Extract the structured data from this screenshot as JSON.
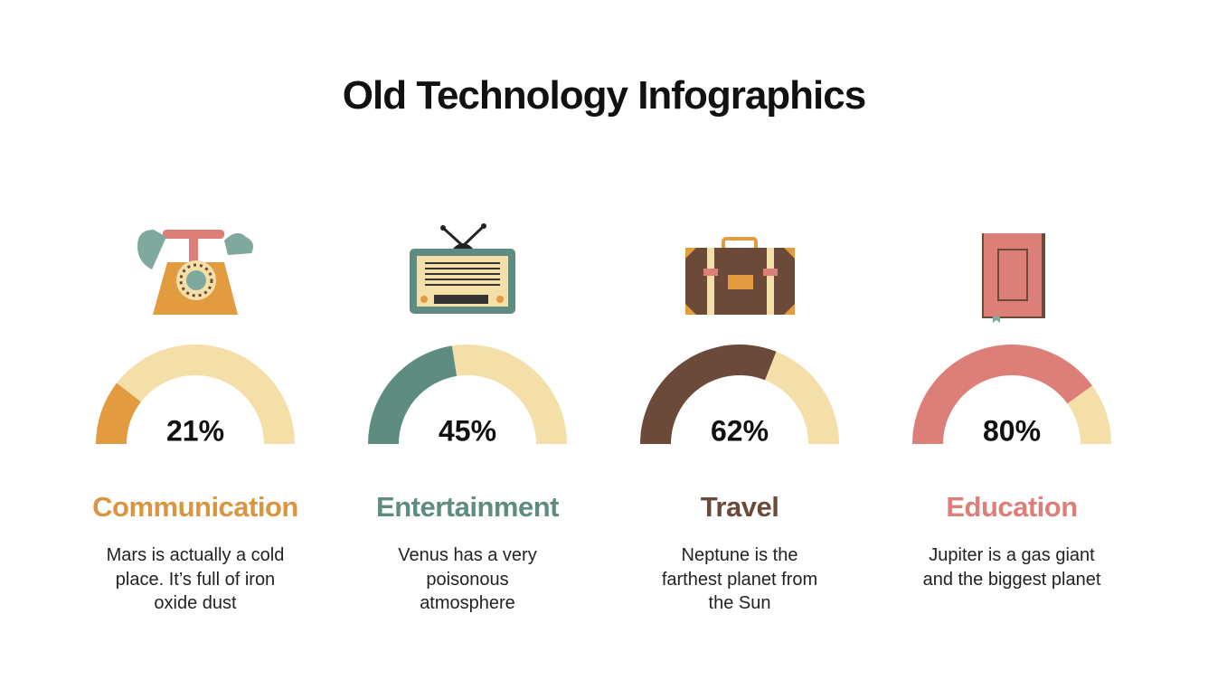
{
  "title": "Old Technology Infographics",
  "chart_data": [
    {
      "type": "gauge",
      "title": "Communication",
      "subtitle": "Mars is actually a cold place. It’s full of iron oxide dust",
      "values": [
        21
      ],
      "value_labels": [
        "21%"
      ],
      "ylim": [
        0,
        100
      ],
      "color": "#e39b3f",
      "track_color": "#f4dfa8",
      "title_color": "#d9953f"
    },
    {
      "type": "gauge",
      "title": "Entertainment",
      "subtitle": "Venus has a very poisonous atmosphere",
      "values": [
        45
      ],
      "value_labels": [
        "45%"
      ],
      "ylim": [
        0,
        100
      ],
      "color": "#5f8c80",
      "track_color": "#f4dfa8",
      "title_color": "#5f8c80"
    },
    {
      "type": "gauge",
      "title": "Travel",
      "subtitle": "Neptune is the farthest planet from the Sun",
      "values": [
        62
      ],
      "value_labels": [
        "62%"
      ],
      "ylim": [
        0,
        100
      ],
      "color": "#6b4a3a",
      "track_color": "#f4dfa8",
      "title_color": "#6b4a3a"
    },
    {
      "type": "gauge",
      "title": "Education",
      "subtitle": "Jupiter is a gas giant and the biggest planet",
      "values": [
        80
      ],
      "value_labels": [
        "80%"
      ],
      "ylim": [
        0,
        100
      ],
      "color": "#dc7f78",
      "track_color": "#f4dfa8",
      "title_color": "#dc7f78"
    }
  ]
}
